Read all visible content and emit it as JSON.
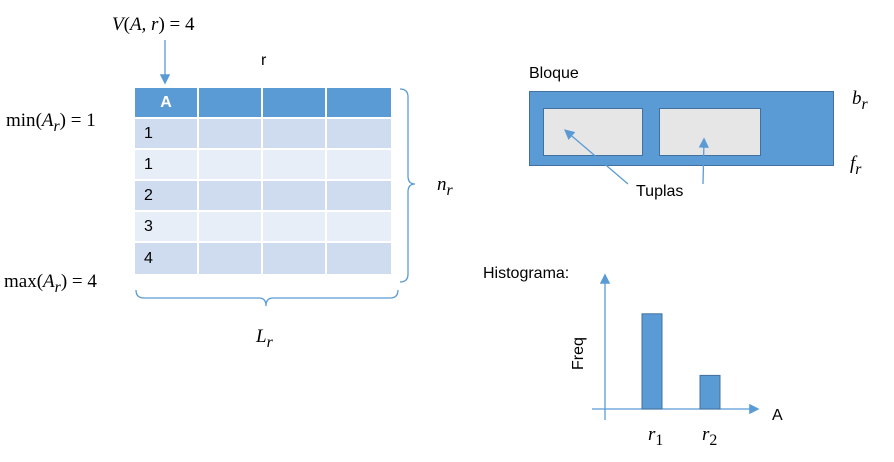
{
  "table": {
    "name": "r",
    "header": [
      "A",
      "",
      "",
      ""
    ],
    "rows": [
      [
        "1",
        "",
        "",
        ""
      ],
      [
        "1",
        "",
        "",
        ""
      ],
      [
        "2",
        "",
        "",
        ""
      ],
      [
        "3",
        "",
        "",
        ""
      ],
      [
        "4",
        "",
        "",
        ""
      ]
    ]
  },
  "annotations": {
    "distinct": {
      "fn": "V",
      "args": "A, r",
      "rhs": "= 4"
    },
    "min": {
      "fn": "min",
      "sym": "A",
      "sub": "r",
      "rhs": "= 1"
    },
    "max": {
      "fn": "max",
      "sym": "A",
      "sub": "r",
      "rhs": "= 4"
    },
    "n_r": {
      "sym": "n",
      "sub": "r"
    },
    "L_r": {
      "sym": "L",
      "sub": "r"
    }
  },
  "block": {
    "title": "Bloque",
    "tuples_label": "Tuplas",
    "b_r": {
      "sym": "b",
      "sub": "r"
    },
    "f_r": {
      "sym": "f",
      "sub": "r"
    }
  },
  "histogram": {
    "title": "Histograma:",
    "ylabel": "Freq",
    "xlabel": "A",
    "ticks": [
      {
        "sym": "r",
        "sub": "1"
      },
      {
        "sym": "r",
        "sub": "2"
      }
    ]
  },
  "chart_data": {
    "type": "bar",
    "categories": [
      "r1",
      "r2"
    ],
    "values": [
      3.4,
      1.2
    ],
    "title": "Histograma:",
    "xlabel": "A",
    "ylabel": "Freq",
    "colors": {
      "bar": "#5b9bd5",
      "bar_stroke": "#41719c",
      "axis": "#5b9bd5"
    }
  },
  "colors": {
    "accent": "#5b9bd5",
    "accent_dark": "#41719c",
    "row_dark": "#cfdbee",
    "row_light": "#e8eef7",
    "tuple_fill": "#e7e6e6"
  }
}
